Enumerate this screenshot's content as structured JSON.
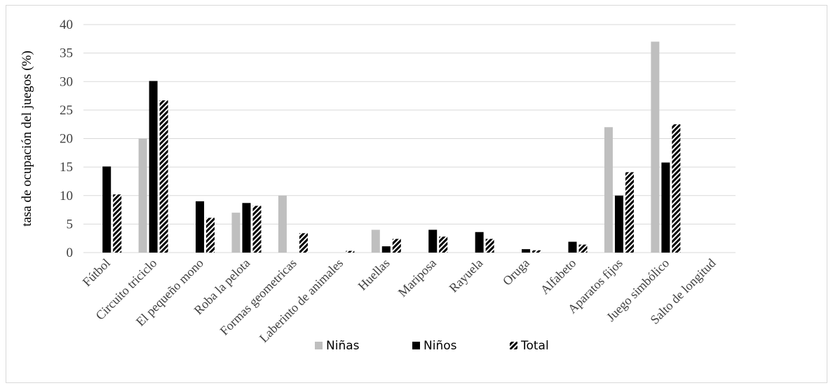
{
  "chart_data": {
    "type": "bar",
    "ylabel": "tasa de ocupación del juegos  (%)",
    "xlabel": "",
    "title": "",
    "ylim": [
      0,
      40
    ],
    "yticks": [
      0,
      5,
      10,
      15,
      20,
      25,
      30,
      35,
      40
    ],
    "grid": true,
    "legend_position": "bottom",
    "categories": [
      "Fútbol",
      "Circuito triciclo",
      "El pequeño mono",
      "Roba la pelota",
      "Formas geometricas",
      "Laberinto de animales",
      "Huellas",
      "Mariposa",
      "Rayuela",
      "Oruga",
      "Alfabeto",
      "Aparatos fijos",
      "Juego simbólico",
      "Salto de longitud"
    ],
    "series": [
      {
        "name": "Niñas",
        "color": "#bfbfbf",
        "pattern": "solid",
        "values": [
          0,
          20,
          0,
          7,
          10,
          0,
          4,
          0,
          0,
          0,
          0,
          22,
          37,
          0
        ]
      },
      {
        "name": "Niños",
        "color": "#000000",
        "pattern": "solid",
        "values": [
          15.1,
          30.1,
          9,
          8.7,
          0,
          0,
          1.1,
          4,
          3.6,
          0.6,
          1.9,
          10,
          15.8,
          0
        ]
      },
      {
        "name": "Total",
        "color": "#262626",
        "pattern": "diagonal-hatch",
        "values": [
          10.2,
          26.7,
          6.1,
          8.2,
          3.4,
          0.3,
          2.4,
          2.8,
          2.4,
          0.4,
          1.4,
          14.1,
          22.5,
          0
        ]
      }
    ]
  }
}
